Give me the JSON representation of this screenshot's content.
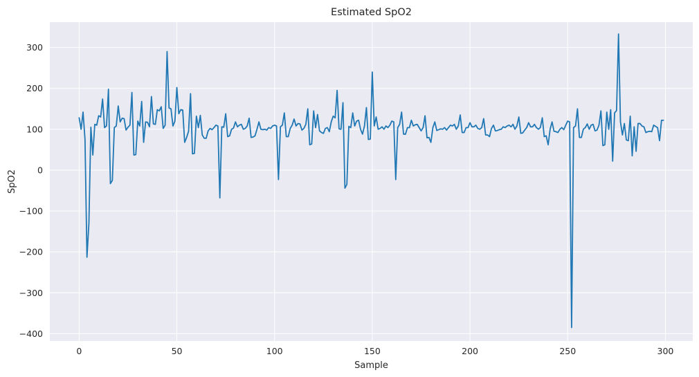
{
  "chart_data": {
    "type": "line",
    "title": "Estimated SpO2",
    "xlabel": "Sample",
    "ylabel": "SpO2",
    "xlim": [
      -15,
      314
    ],
    "ylim": [
      -418,
      362
    ],
    "xticks": [
      0,
      50,
      100,
      150,
      200,
      250,
      300
    ],
    "yticks": [
      -400,
      -300,
      -200,
      -100,
      0,
      100,
      200,
      300
    ],
    "xtick_labels": [
      "0",
      "50",
      "100",
      "150",
      "200",
      "250",
      "300"
    ],
    "ytick_labels": [
      "−400",
      "−300",
      "−200",
      "−100",
      "0",
      "100",
      "200",
      "300"
    ],
    "grid": true,
    "background_color": "#eaeaf2",
    "grid_color": "#ffffff",
    "series": [
      {
        "color": "#1f77b4",
        "x": [
          0,
          1,
          2,
          3,
          4,
          5,
          6,
          7,
          8,
          9,
          10,
          11,
          12,
          13,
          14,
          15,
          16,
          17,
          18,
          19,
          20,
          21,
          22,
          23,
          24,
          25,
          26,
          27,
          28,
          29,
          30,
          31,
          32,
          33,
          34,
          35,
          36,
          37,
          38,
          39,
          40,
          41,
          42,
          43,
          44,
          45,
          46,
          47,
          48,
          49,
          50,
          51,
          52,
          53,
          54,
          55,
          56,
          57,
          58,
          59,
          60,
          61,
          62,
          63,
          64,
          65,
          66,
          67,
          68,
          69,
          70,
          71,
          72,
          73,
          74,
          75,
          76,
          77,
          78,
          79,
          80,
          81,
          82,
          83,
          84,
          85,
          86,
          87,
          88,
          89,
          90,
          91,
          92,
          93,
          94,
          95,
          96,
          97,
          98,
          99,
          100,
          101,
          102,
          103,
          104,
          105,
          106,
          107,
          108,
          109,
          110,
          111,
          112,
          113,
          114,
          115,
          116,
          117,
          118,
          119,
          120,
          121,
          122,
          123,
          124,
          125,
          126,
          127,
          128,
          129,
          130,
          131,
          132,
          133,
          134,
          135,
          136,
          137,
          138,
          139,
          140,
          141,
          142,
          143,
          144,
          145,
          146,
          147,
          148,
          149,
          150,
          151,
          152,
          153,
          154,
          155,
          156,
          157,
          158,
          159,
          160,
          161,
          162,
          163,
          164,
          165,
          166,
          167,
          168,
          169,
          170,
          171,
          172,
          173,
          174,
          175,
          176,
          177,
          178,
          179,
          180,
          181,
          182,
          183,
          184,
          185,
          186,
          187,
          188,
          189,
          190,
          191,
          192,
          193,
          194,
          195,
          196,
          197,
          198,
          199,
          200,
          201,
          202,
          203,
          204,
          205,
          206,
          207,
          208,
          209,
          210,
          211,
          212,
          213,
          214,
          215,
          216,
          217,
          218,
          219,
          220,
          221,
          222,
          223,
          224,
          225,
          226,
          227,
          228,
          229,
          230,
          231,
          232,
          233,
          234,
          235,
          236,
          237,
          238,
          239,
          240,
          241,
          242,
          243,
          244,
          245,
          246,
          247,
          248,
          249,
          250,
          251,
          252,
          253,
          254,
          255,
          256,
          257,
          258,
          259,
          260,
          261,
          262,
          263,
          264,
          265,
          266,
          267,
          268,
          269,
          270,
          271,
          272,
          273,
          274,
          275,
          276,
          277,
          278,
          279,
          280,
          281,
          282,
          283,
          284,
          285,
          286,
          287,
          288,
          289,
          290,
          291,
          292,
          293,
          294,
          295,
          296,
          297,
          298,
          299
        ],
        "y": [
          128,
          100,
          142,
          75,
          -213,
          -130,
          105,
          37,
          112,
          110,
          133,
          130,
          174,
          104,
          108,
          198,
          -33,
          -25,
          104,
          108,
          157,
          118,
          127,
          126,
          98,
          105,
          110,
          190,
          37,
          38,
          120,
          108,
          168,
          68,
          118,
          117,
          106,
          180,
          113,
          112,
          148,
          145,
          155,
          102,
          110,
          290,
          152,
          150,
          108,
          120,
          202,
          138,
          148,
          147,
          68,
          80,
          95,
          187,
          40,
          41,
          132,
          104,
          134,
          86,
          78,
          78,
          96,
          102,
          99,
          104,
          110,
          108,
          -68,
          106,
          105,
          138,
          82,
          84,
          100,
          103,
          118,
          106,
          110,
          112,
          100,
          102,
          108,
          127,
          80,
          81,
          84,
          100,
          118,
          100,
          99,
          100,
          98,
          104,
          102,
          108,
          110,
          108,
          -23,
          106,
          110,
          140,
          82,
          82,
          102,
          110,
          125,
          108,
          114,
          113,
          98,
          102,
          112,
          150,
          62,
          64,
          145,
          104,
          136,
          96,
          92,
          90,
          102,
          104,
          94,
          118,
          132,
          128,
          195,
          101,
          100,
          165,
          -44,
          -35,
          107,
          104,
          140,
          108,
          120,
          122,
          100,
          88,
          108,
          153,
          75,
          76,
          240,
          108,
          130,
          100,
          102,
          106,
          100,
          108,
          104,
          110,
          120,
          118,
          -23,
          104,
          112,
          142,
          88,
          88,
          104,
          104,
          122,
          108,
          111,
          112,
          104,
          96,
          104,
          133,
          79,
          80,
          68,
          104,
          118,
          97,
          99,
          101,
          100,
          104,
          98,
          104,
          110,
          108,
          112,
          100,
          108,
          135,
          92,
          92,
          104,
          104,
          116,
          106,
          106,
          110,
          102,
          100,
          104,
          126,
          86,
          86,
          82,
          102,
          110,
          96,
          97,
          99,
          100,
          106,
          104,
          108,
          110,
          106,
          112,
          100,
          108,
          130,
          90,
          91,
          98,
          104,
          116,
          106,
          106,
          112,
          104,
          100,
          104,
          128,
          82,
          84,
          62,
          100,
          118,
          95,
          94,
          92,
          100,
          104,
          99,
          110,
          120,
          118,
          -385,
          104,
          108,
          150,
          80,
          80,
          100,
          104,
          113,
          100,
          110,
          112,
          96,
          98,
          110,
          145,
          60,
          62,
          142,
          100,
          148,
          22,
          140,
          146,
          333,
          118,
          86,
          114,
          74,
          72,
          132,
          35,
          106,
          46,
          114,
          114,
          108,
          106,
          92,
          94,
          95,
          94,
          110,
          107,
          104,
          72,
          122,
          122
        ]
      }
    ]
  }
}
